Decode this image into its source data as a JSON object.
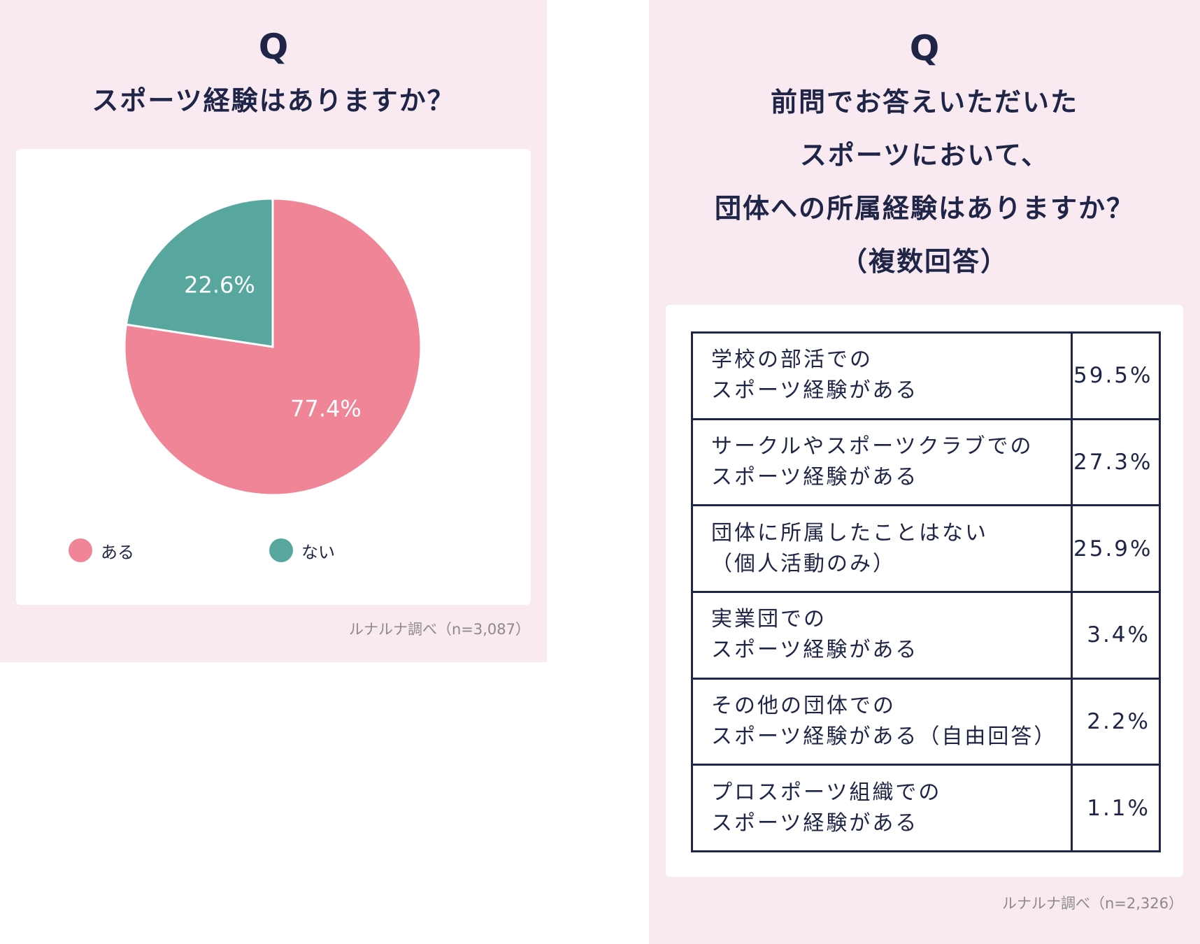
{
  "left": {
    "q_mark": "Q",
    "title": "スポーツ経験はありますか？",
    "source": "ルナルナ調べ（n=3,087）",
    "legend": [
      {
        "label": "ある",
        "color": "#f08597"
      },
      {
        "label": "ない",
        "color": "#57a79e"
      }
    ]
  },
  "right": {
    "q_mark": "Q",
    "title_lines": [
      "前問でお答えいただいた",
      "スポーツにおいて、",
      "団体への所属経験はありますか？",
      "（複数回答）"
    ],
    "source": "ルナルナ調べ（n=2,326）"
  },
  "chart_data": [
    {
      "type": "pie",
      "categories": [
        "ある",
        "ない"
      ],
      "values": [
        77.4,
        22.6
      ],
      "labels": [
        "77.4%",
        "22.6%"
      ],
      "colors": [
        "#f08597",
        "#57a79e"
      ],
      "title": "スポーツ経験はありますか？"
    },
    {
      "type": "table",
      "title": "前問でお答えいただいたスポーツにおいて、団体への所属経験はありますか？（複数回答）",
      "rows": [
        {
          "label_lines": [
            "学校の部活での",
            "スポーツ経験がある"
          ],
          "value": "59.5%"
        },
        {
          "label_lines": [
            "サークルやスポーツクラブでの",
            "スポーツ経験がある"
          ],
          "value": "27.3%"
        },
        {
          "label_lines": [
            "団体に所属したことはない",
            "（個人活動のみ）"
          ],
          "value": "25.9%"
        },
        {
          "label_lines": [
            "実業団での",
            "スポーツ経験がある"
          ],
          "value": "3.4%"
        },
        {
          "label_lines": [
            "その他の団体での",
            "スポーツ経験がある（自由回答）"
          ],
          "value": "2.2%"
        },
        {
          "label_lines": [
            "プロスポーツ組織での",
            "スポーツ経験がある"
          ],
          "value": "1.1%"
        }
      ]
    }
  ]
}
